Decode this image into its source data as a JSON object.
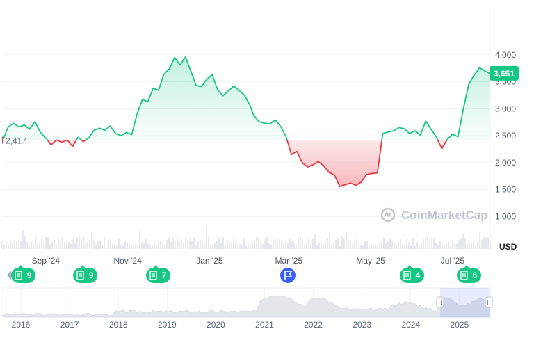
{
  "chart_data": {
    "type": "line",
    "unit": "USD",
    "baseline": 2417,
    "baseline_label": "2,417",
    "current_value": 3651,
    "current_label": "3,651",
    "watermark": "CoinMarketCap",
    "ylim": [
      760,
      4500
    ],
    "y_ticks": [
      {
        "value": 1000,
        "label": "1,000"
      },
      {
        "value": 1500,
        "label": "1,500"
      },
      {
        "value": 2000,
        "label": "2,000"
      },
      {
        "value": 2500,
        "label": "2,500"
      },
      {
        "value": 3000,
        "label": "3,000"
      },
      {
        "value": 3500,
        "label": "3,500"
      },
      {
        "value": 4000,
        "label": "4,000"
      }
    ],
    "x_ticks": [
      {
        "date": "2024-09-01",
        "label": "Sep '24"
      },
      {
        "date": "2024-11-01",
        "label": "Nov '24"
      },
      {
        "date": "2025-01-01",
        "label": "Jan '25"
      },
      {
        "date": "2025-03-01",
        "label": "Mar '25"
      },
      {
        "date": "2025-05-01",
        "label": "May '25"
      },
      {
        "date": "2025-07-01",
        "label": "Jul '25"
      }
    ],
    "series": [
      {
        "x": [
          "2024-07-31",
          "2024-08-04",
          "2024-08-08",
          "2024-08-12",
          "2024-08-16",
          "2024-08-20",
          "2024-08-24",
          "2024-08-28",
          "2024-09-01",
          "2024-09-05",
          "2024-09-09",
          "2024-09-13",
          "2024-09-17",
          "2024-09-21",
          "2024-09-25",
          "2024-09-29",
          "2024-10-03",
          "2024-10-07",
          "2024-10-11",
          "2024-10-15",
          "2024-10-19",
          "2024-10-23",
          "2024-10-27",
          "2024-10-31",
          "2024-11-04",
          "2024-11-08",
          "2024-11-12",
          "2024-11-16",
          "2024-11-20",
          "2024-11-24",
          "2024-11-28",
          "2024-12-02",
          "2024-12-06",
          "2024-12-10",
          "2024-12-14",
          "2024-12-18",
          "2024-12-22",
          "2024-12-26",
          "2024-12-30",
          "2025-01-03",
          "2025-01-07",
          "2025-01-11",
          "2025-01-15",
          "2025-01-19",
          "2025-01-23",
          "2025-01-27",
          "2025-01-31",
          "2025-02-03",
          "2025-02-07",
          "2025-02-11",
          "2025-02-15",
          "2025-02-19",
          "2025-02-23",
          "2025-02-27",
          "2025-03-03",
          "2025-03-07",
          "2025-03-11",
          "2025-03-15",
          "2025-03-19",
          "2025-03-23",
          "2025-03-27",
          "2025-03-31",
          "2025-04-04",
          "2025-04-08",
          "2025-04-12",
          "2025-04-16",
          "2025-04-20",
          "2025-04-24",
          "2025-04-28",
          "2025-05-02",
          "2025-05-06",
          "2025-05-10",
          "2025-05-14",
          "2025-05-18",
          "2025-05-22",
          "2025-05-26",
          "2025-05-30",
          "2025-06-03",
          "2025-06-07",
          "2025-06-11",
          "2025-06-15",
          "2025-06-19",
          "2025-06-23",
          "2025-06-27",
          "2025-07-01",
          "2025-07-05",
          "2025-07-09",
          "2025-07-13",
          "2025-07-17",
          "2025-07-21",
          "2025-07-25",
          "2025-07-29"
        ],
        "values": [
          2420,
          2660,
          2730,
          2660,
          2700,
          2620,
          2760,
          2560,
          2460,
          2330,
          2420,
          2380,
          2420,
          2300,
          2470,
          2390,
          2460,
          2600,
          2640,
          2600,
          2680,
          2540,
          2500,
          2560,
          2520,
          2900,
          3170,
          3130,
          3380,
          3340,
          3640,
          3740,
          3950,
          3810,
          3960,
          3700,
          3430,
          3410,
          3550,
          3630,
          3350,
          3240,
          3330,
          3420,
          3340,
          3250,
          3070,
          2870,
          2760,
          2730,
          2720,
          2790,
          2670,
          2480,
          2150,
          2210,
          2000,
          1920,
          1960,
          2020,
          1940,
          1820,
          1770,
          1560,
          1590,
          1620,
          1580,
          1640,
          1780,
          1800,
          1810,
          2540,
          2570,
          2590,
          2650,
          2630,
          2540,
          2590,
          2510,
          2770,
          2620,
          2470,
          2260,
          2430,
          2530,
          2480,
          3000,
          3450,
          3620,
          3760,
          3700,
          3651
        ]
      }
    ],
    "events": [
      {
        "kind": "news",
        "label": "9"
      },
      {
        "kind": "news",
        "label": "9"
      },
      {
        "kind": "news",
        "label": "7"
      },
      {
        "kind": "flag",
        "label": ""
      },
      {
        "kind": "news",
        "label": "4"
      },
      {
        "kind": "news",
        "label": "6"
      }
    ],
    "navigator": {
      "x_ticks": [
        "2016",
        "2017",
        "2018",
        "2019",
        "2020",
        "2021",
        "2022",
        "2023",
        "2024",
        "2025"
      ]
    }
  },
  "colors": {
    "up": "#16c784",
    "down": "#ea3943",
    "badge": "#16c784",
    "flag": "#3861fb",
    "baseline": "#58667e"
  }
}
